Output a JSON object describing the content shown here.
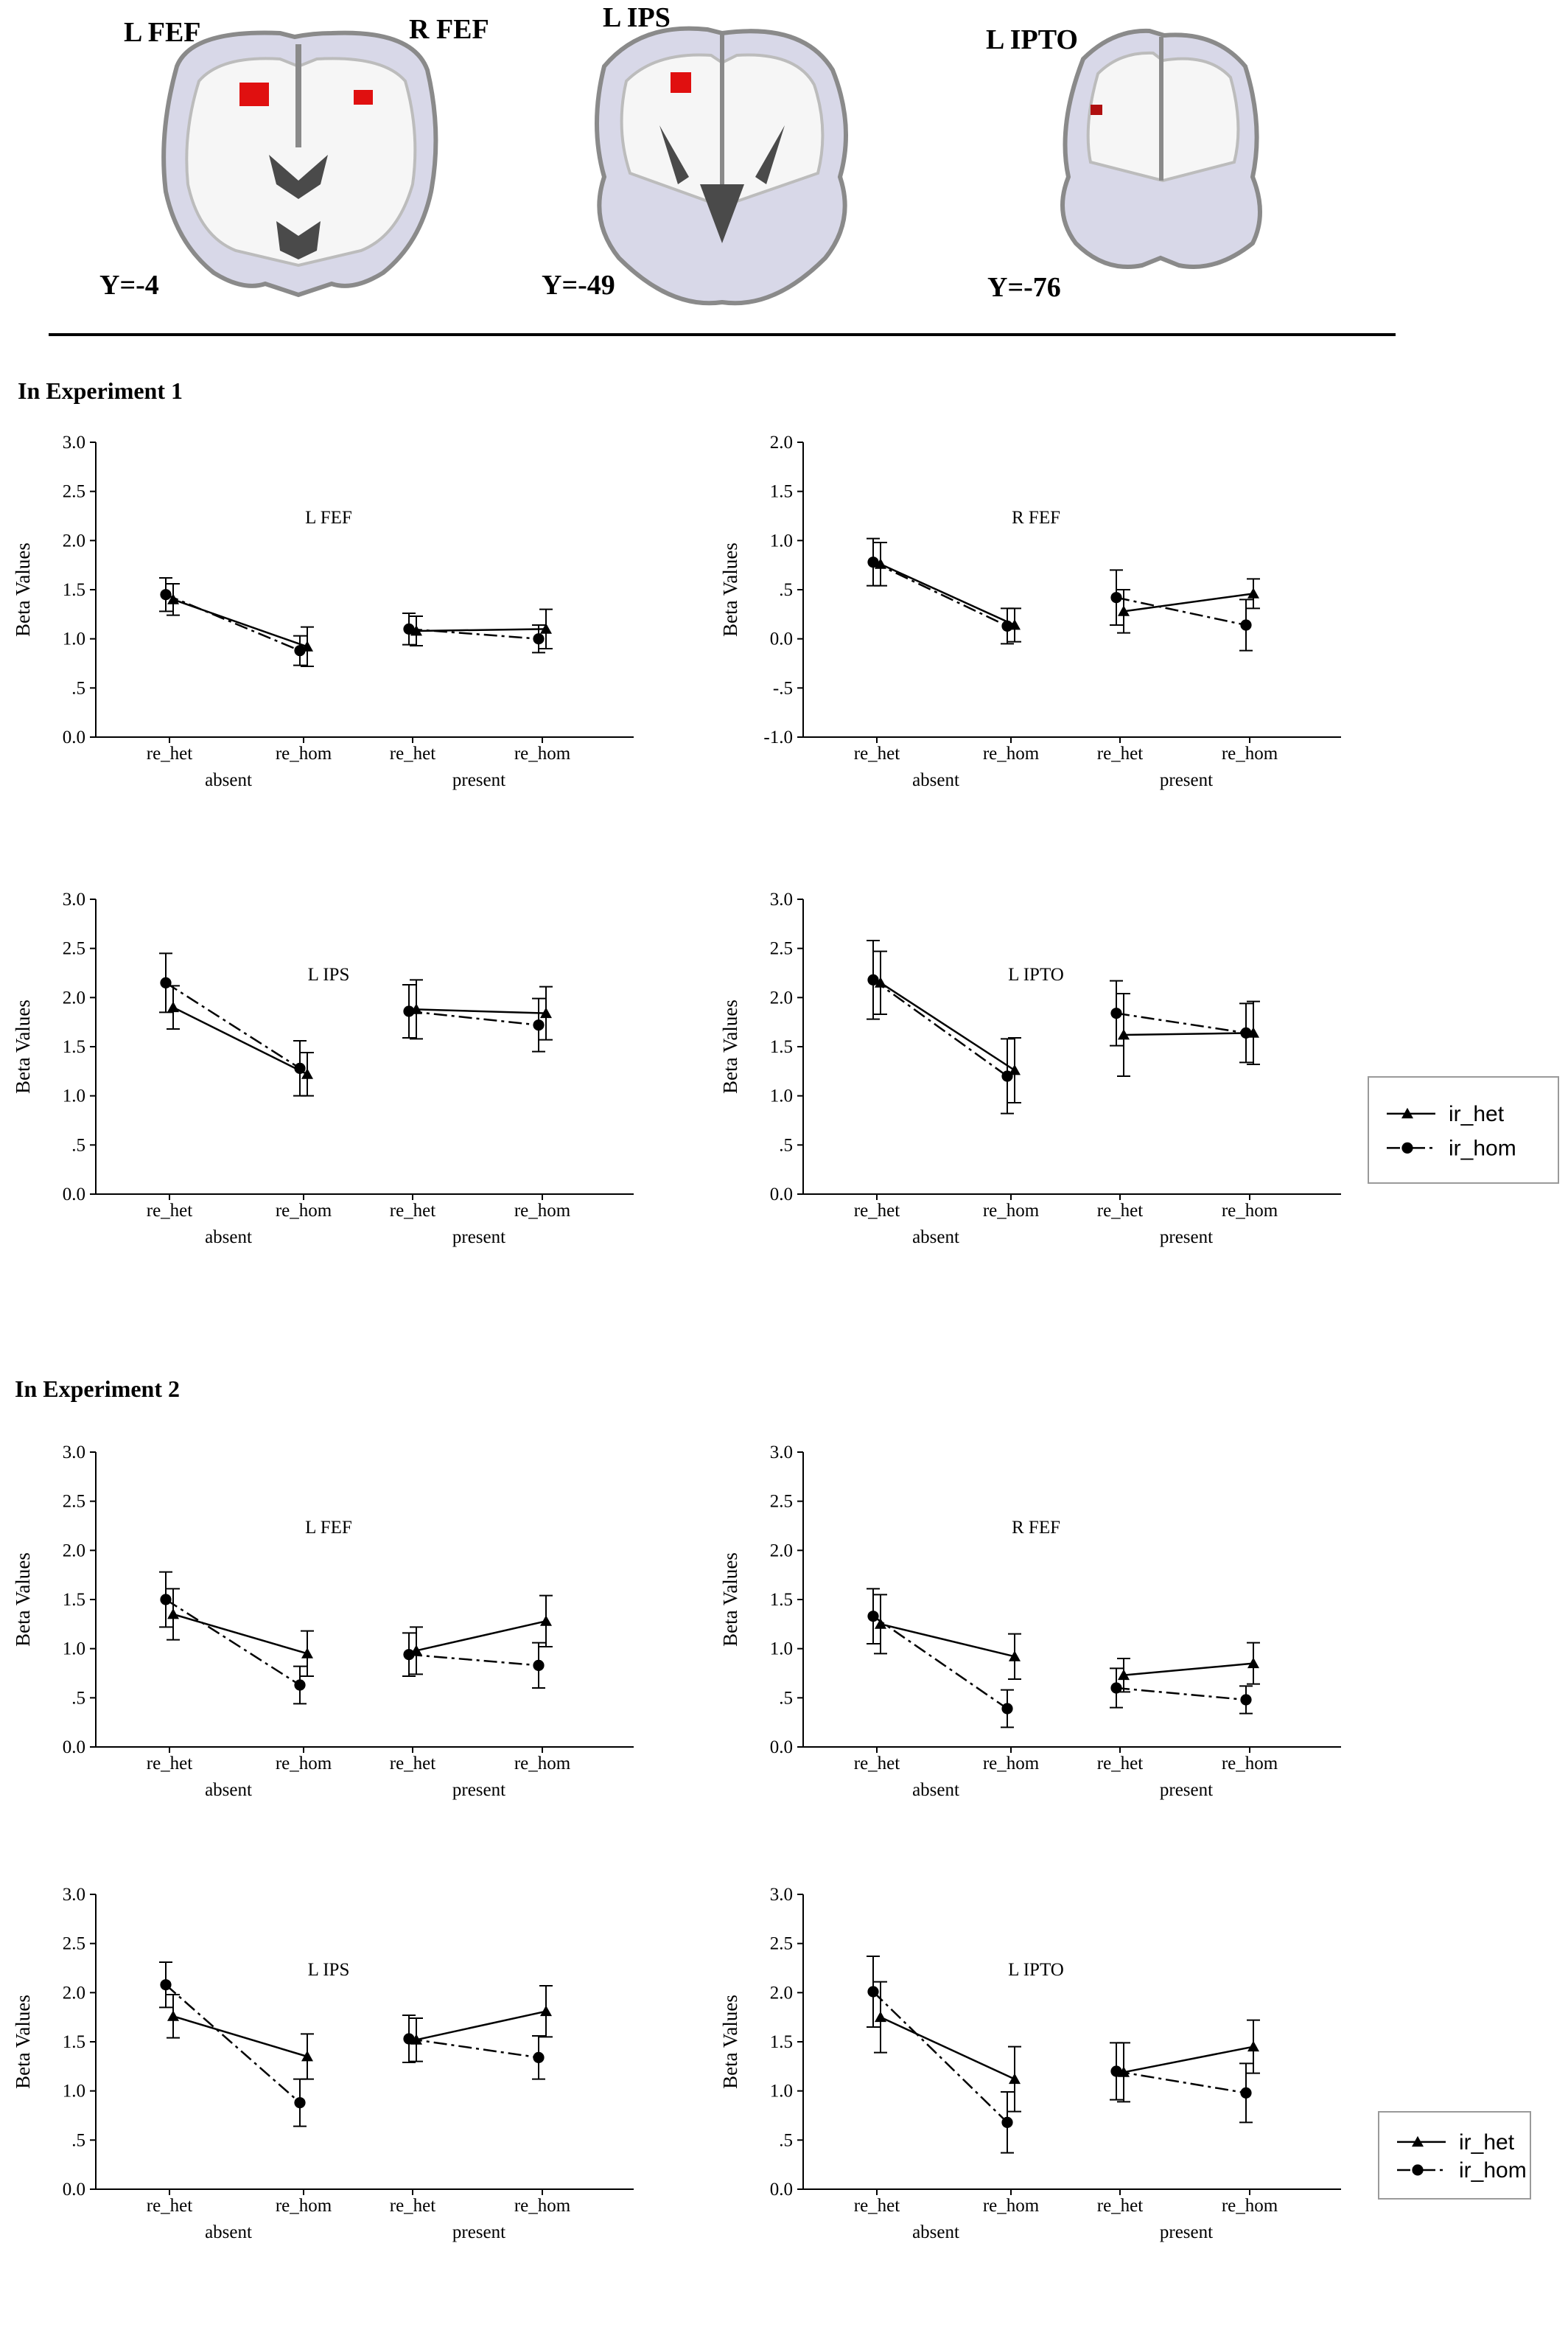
{
  "brain_images": [
    {
      "labels": [
        "L FEF",
        "R FEF"
      ],
      "coord": "Y=-4"
    },
    {
      "labels": [
        "L IPS"
      ],
      "coord": "Y=-49"
    },
    {
      "labels": [
        "L IPTO"
      ],
      "coord": "Y=-76"
    }
  ],
  "sections": [
    {
      "title": "In Experiment 1"
    },
    {
      "title": "In Experiment 2"
    }
  ],
  "legend": {
    "series": [
      {
        "name": "ir_het",
        "marker": "triangle",
        "dash": "solid"
      },
      {
        "name": "ir_hom",
        "marker": "circle",
        "dash": "dashdot"
      }
    ]
  },
  "chart_data": [
    {
      "type": "line",
      "experiment": "In Experiment 1",
      "title": "L FEF",
      "ylabel": "Beta Values",
      "ylim": [
        0,
        3
      ],
      "yticks": [
        "0.0",
        ".5",
        "1.0",
        "1.5",
        "2.0",
        "2.5",
        "3.0"
      ],
      "categories": [
        "re_het",
        "re_hom",
        "re_het",
        "re_hom"
      ],
      "groups": [
        "absent",
        "present"
      ],
      "series": [
        {
          "name": "ir_het",
          "values": [
            1.4,
            0.92,
            1.08,
            1.1
          ],
          "err": [
            0.16,
            0.2,
            0.15,
            0.2
          ]
        },
        {
          "name": "ir_hom",
          "values": [
            1.45,
            0.88,
            1.1,
            1.0
          ],
          "err": [
            0.17,
            0.15,
            0.16,
            0.14
          ]
        }
      ]
    },
    {
      "type": "line",
      "experiment": "In Experiment 1",
      "title": "R FEF",
      "ylabel": "Beta Values",
      "ylim": [
        -1,
        2
      ],
      "yticks": [
        "-1.0",
        "-.5",
        "0.0",
        ".5",
        "1.0",
        "1.5",
        "2.0"
      ],
      "categories": [
        "re_het",
        "re_hom",
        "re_het",
        "re_hom"
      ],
      "groups": [
        "absent",
        "present"
      ],
      "series": [
        {
          "name": "ir_het",
          "values": [
            0.76,
            0.14,
            0.28,
            0.46
          ],
          "err": [
            0.22,
            0.17,
            0.22,
            0.15
          ]
        },
        {
          "name": "ir_hom",
          "values": [
            0.78,
            0.13,
            0.42,
            0.14
          ],
          "err": [
            0.24,
            0.18,
            0.28,
            0.26
          ]
        }
      ]
    },
    {
      "type": "line",
      "experiment": "In Experiment 1",
      "title": "L IPS",
      "ylabel": "Beta Values",
      "ylim": [
        0,
        3
      ],
      "yticks": [
        "0.0",
        ".5",
        "1.0",
        "1.5",
        "2.0",
        "2.5",
        "3.0"
      ],
      "categories": [
        "re_het",
        "re_hom",
        "re_het",
        "re_hom"
      ],
      "groups": [
        "absent",
        "present"
      ],
      "series": [
        {
          "name": "ir_het",
          "values": [
            1.9,
            1.22,
            1.88,
            1.84
          ],
          "err": [
            0.22,
            0.22,
            0.3,
            0.27
          ]
        },
        {
          "name": "ir_hom",
          "values": [
            2.15,
            1.28,
            1.86,
            1.72
          ],
          "err": [
            0.3,
            0.28,
            0.27,
            0.27
          ]
        }
      ]
    },
    {
      "type": "line",
      "experiment": "In Experiment 1",
      "title": "L IPTO",
      "ylabel": "Beta Values",
      "ylim": [
        0,
        3
      ],
      "yticks": [
        "0.0",
        ".5",
        "1.0",
        "1.5",
        "2.0",
        "2.5",
        "3.0"
      ],
      "categories": [
        "re_het",
        "re_hom",
        "re_het",
        "re_hom"
      ],
      "groups": [
        "absent",
        "present"
      ],
      "series": [
        {
          "name": "ir_het",
          "values": [
            2.15,
            1.26,
            1.62,
            1.64
          ],
          "err": [
            0.32,
            0.33,
            0.42,
            0.32
          ]
        },
        {
          "name": "ir_hom",
          "values": [
            2.18,
            1.2,
            1.84,
            1.64
          ],
          "err": [
            0.4,
            0.38,
            0.33,
            0.3
          ]
        }
      ]
    },
    {
      "type": "line",
      "experiment": "In Experiment 2",
      "title": "L FEF",
      "ylabel": "Beta Values",
      "ylim": [
        0,
        3
      ],
      "yticks": [
        "0.0",
        ".5",
        "1.0",
        "1.5",
        "2.0",
        "2.5",
        "3.0"
      ],
      "categories": [
        "re_het",
        "re_hom",
        "re_het",
        "re_hom"
      ],
      "groups": [
        "absent",
        "present"
      ],
      "series": [
        {
          "name": "ir_het",
          "values": [
            1.35,
            0.95,
            0.98,
            1.28
          ],
          "err": [
            0.26,
            0.23,
            0.24,
            0.26
          ]
        },
        {
          "name": "ir_hom",
          "values": [
            1.5,
            0.63,
            0.94,
            0.83
          ],
          "err": [
            0.28,
            0.19,
            0.22,
            0.23
          ]
        }
      ]
    },
    {
      "type": "line",
      "experiment": "In Experiment 2",
      "title": "R FEF",
      "ylabel": "Beta Values",
      "ylim": [
        0,
        3
      ],
      "yticks": [
        "0.0",
        ".5",
        "1.0",
        "1.5",
        "2.0",
        "2.5",
        "3.0"
      ],
      "categories": [
        "re_het",
        "re_hom",
        "re_het",
        "re_hom"
      ],
      "groups": [
        "absent",
        "present"
      ],
      "series": [
        {
          "name": "ir_het",
          "values": [
            1.25,
            0.92,
            0.73,
            0.85
          ],
          "err": [
            0.3,
            0.23,
            0.17,
            0.21
          ]
        },
        {
          "name": "ir_hom",
          "values": [
            1.33,
            0.39,
            0.6,
            0.48
          ],
          "err": [
            0.28,
            0.19,
            0.2,
            0.14
          ]
        }
      ]
    },
    {
      "type": "line",
      "experiment": "In Experiment 2",
      "title": "L IPS",
      "ylabel": "Beta Values",
      "ylim": [
        0,
        3
      ],
      "yticks": [
        "0.0",
        ".5",
        "1.0",
        "1.5",
        "2.0",
        "2.5",
        "3.0"
      ],
      "categories": [
        "re_het",
        "re_hom",
        "re_het",
        "re_hom"
      ],
      "groups": [
        "absent",
        "present"
      ],
      "series": [
        {
          "name": "ir_het",
          "values": [
            1.76,
            1.35,
            1.52,
            1.81
          ],
          "err": [
            0.22,
            0.23,
            0.22,
            0.26
          ]
        },
        {
          "name": "ir_hom",
          "values": [
            2.08,
            0.88,
            1.53,
            1.34
          ],
          "err": [
            0.23,
            0.24,
            0.24,
            0.22
          ]
        }
      ]
    },
    {
      "type": "line",
      "experiment": "In Experiment 2",
      "title": "L IPTO",
      "ylabel": "Beta Values",
      "ylim": [
        0,
        3
      ],
      "yticks": [
        "0.0",
        ".5",
        "1.0",
        "1.5",
        "2.0",
        "2.5",
        "3.0"
      ],
      "categories": [
        "re_het",
        "re_hom",
        "re_het",
        "re_hom"
      ],
      "groups": [
        "absent",
        "present"
      ],
      "series": [
        {
          "name": "ir_het",
          "values": [
            1.75,
            1.12,
            1.19,
            1.45
          ],
          "err": [
            0.36,
            0.33,
            0.3,
            0.27
          ]
        },
        {
          "name": "ir_hom",
          "values": [
            2.01,
            0.68,
            1.2,
            0.98
          ],
          "err": [
            0.36,
            0.31,
            0.29,
            0.3
          ]
        }
      ]
    }
  ]
}
